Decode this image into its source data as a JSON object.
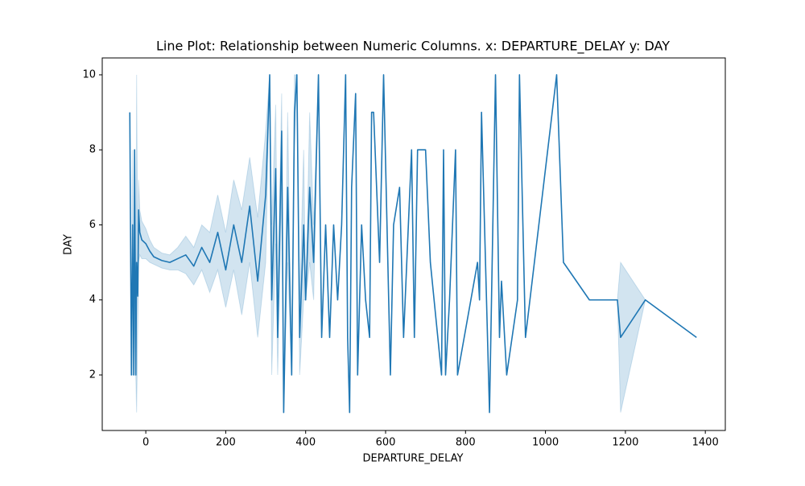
{
  "chart_data": {
    "type": "line",
    "title": "Line Plot: Relationship between Numeric Columns. x: DEPARTURE_DELAY y: DAY",
    "xlabel": "DEPARTURE_DELAY",
    "ylabel": "DAY",
    "xlim": [
      -109,
      1450
    ],
    "ylim": [
      0.52,
      10.45
    ],
    "xticks": [
      0,
      200,
      400,
      600,
      800,
      1000,
      1200,
      1400
    ],
    "yticks": [
      2,
      4,
      6,
      8,
      10
    ],
    "grid": false,
    "x": [
      -40,
      -36,
      -33,
      -30,
      -28,
      -25,
      -23,
      -20,
      -18,
      -15,
      -10,
      0,
      10,
      20,
      40,
      60,
      80,
      100,
      120,
      140,
      160,
      180,
      200,
      220,
      240,
      260,
      280,
      300,
      310,
      315,
      325,
      330,
      340,
      345,
      355,
      365,
      372,
      378,
      385,
      395,
      400,
      410,
      420,
      432,
      440,
      450,
      460,
      470,
      480,
      490,
      500,
      505,
      510,
      515,
      525,
      530,
      540,
      550,
      560,
      565,
      570,
      585,
      595,
      612,
      620,
      635,
      645,
      665,
      672,
      680,
      700,
      712,
      740,
      745,
      750,
      760,
      775,
      780,
      830,
      835,
      840,
      860,
      875,
      885,
      890,
      903,
      930,
      935,
      950,
      1028,
      1045,
      1110,
      1180,
      1188,
      1250,
      1378
    ],
    "series": [
      {
        "color": "#1f77b4",
        "band_color": "#1f77b4",
        "values": [
          9,
          2,
          6,
          2,
          8,
          2,
          5,
          4.1,
          6.4,
          5.8,
          5.6,
          5.5,
          5.3,
          5.15,
          5.05,
          5.0,
          5.1,
          5.2,
          4.9,
          5.4,
          5.0,
          5.8,
          4.8,
          6.0,
          5.0,
          6.5,
          4.5,
          6.8,
          10,
          4,
          7.5,
          3,
          8.5,
          1,
          7,
          2,
          9,
          10,
          3,
          6,
          4,
          7,
          5,
          10,
          3,
          6,
          3,
          6,
          4,
          6,
          10,
          3,
          1,
          7,
          9.5,
          2,
          6,
          4,
          3,
          9,
          9,
          5,
          10,
          2,
          6,
          7,
          3,
          8,
          3,
          8,
          8,
          5,
          2,
          8,
          2,
          4,
          8,
          2,
          5,
          4,
          9,
          1,
          10,
          3,
          4.5,
          2,
          4,
          10,
          3,
          10,
          5,
          4,
          4,
          3,
          4,
          3
        ],
        "ci_lower": [
          9,
          2,
          2,
          2,
          4,
          2,
          1,
          3.3,
          5,
          5.2,
          5.1,
          5.1,
          5,
          4.95,
          4.85,
          4.8,
          4.8,
          4.7,
          4.4,
          4.8,
          4.2,
          4.8,
          3.8,
          4.8,
          3.6,
          5,
          3,
          5,
          10,
          2,
          5.5,
          2,
          7,
          1,
          5,
          2,
          8,
          10,
          2,
          4,
          4,
          5,
          4,
          10,
          3,
          6,
          3,
          6,
          4,
          6,
          10,
          3,
          1,
          7,
          9.5,
          2,
          6,
          4,
          3,
          9,
          9,
          5,
          10,
          2,
          6,
          7,
          3,
          8,
          3,
          8,
          8,
          5,
          2,
          8,
          2,
          4,
          8,
          2,
          5,
          4,
          9,
          1,
          10,
          3,
          4.5,
          2,
          4,
          10,
          3,
          10,
          5,
          4,
          4,
          1,
          4,
          3
        ],
        "ci_upper": [
          9,
          2,
          8,
          2,
          8,
          2,
          10,
          5,
          7.2,
          6.4,
          6.1,
          5.9,
          5.6,
          5.4,
          5.25,
          5.2,
          5.4,
          5.7,
          5.4,
          6.0,
          5.8,
          6.8,
          5.8,
          7.2,
          6.4,
          7.8,
          6.2,
          8.5,
          10,
          6,
          9.2,
          4,
          9.5,
          1,
          9,
          2,
          10,
          10,
          4,
          8,
          4,
          9,
          6,
          10,
          3,
          6,
          3,
          6,
          4,
          6,
          10,
          3,
          1,
          7,
          9.5,
          2,
          6,
          4,
          3,
          9,
          9,
          5,
          10,
          2,
          6,
          7,
          3,
          8,
          3,
          8,
          8,
          5,
          2,
          8,
          2,
          4,
          8,
          2,
          5,
          4,
          9,
          1,
          10,
          3,
          4.5,
          2,
          4,
          10,
          3,
          10,
          5,
          4,
          4,
          5,
          4,
          3
        ]
      }
    ]
  }
}
